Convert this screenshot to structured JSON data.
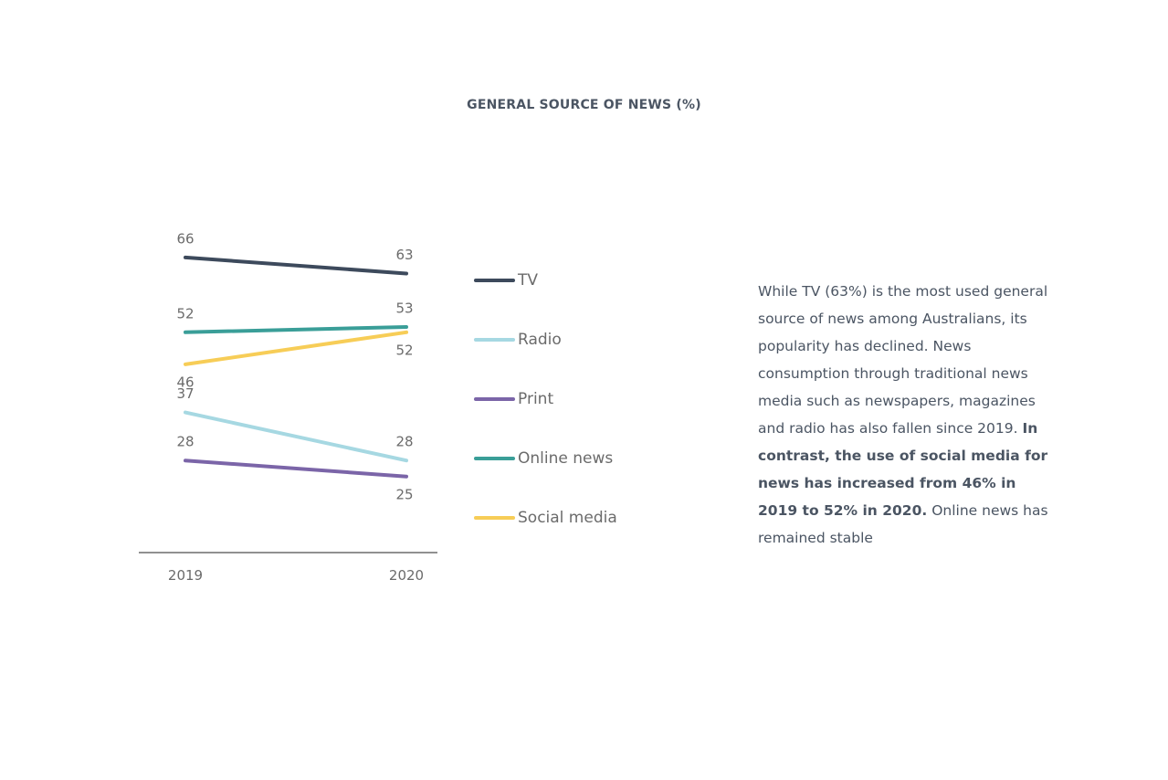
{
  "chart_data": {
    "type": "line",
    "title": "GENERAL SOURCE OF NEWS (%)",
    "categories": [
      "2019",
      "2020"
    ],
    "ylim": [
      0,
      100
    ],
    "grid": false,
    "legend_position": "right",
    "series": [
      {
        "name": "TV",
        "values": [
          66,
          63
        ],
        "color": "#3d4a5c"
      },
      {
        "name": "Radio",
        "values": [
          37,
          28
        ],
        "color": "#a6d8e2"
      },
      {
        "name": "Print",
        "values": [
          28,
          25
        ],
        "color": "#7b65a8"
      },
      {
        "name": "Online news",
        "values": [
          52,
          53
        ],
        "color": "#3a9e98"
      },
      {
        "name": "Social media",
        "values": [
          46,
          52
        ],
        "color": "#f7cd57"
      }
    ]
  },
  "description": {
    "part1": "While TV (63%) is the most used general source of news among Australians, its popularity has declined. News consumption through traditional news media such as newspapers, magazines and radio has also fallen since 2019. ",
    "bold": "In contrast, the use of social media for news has increased from 46% in 2019 to 52% in 2020.",
    "part2": " Online news has remained stable"
  }
}
